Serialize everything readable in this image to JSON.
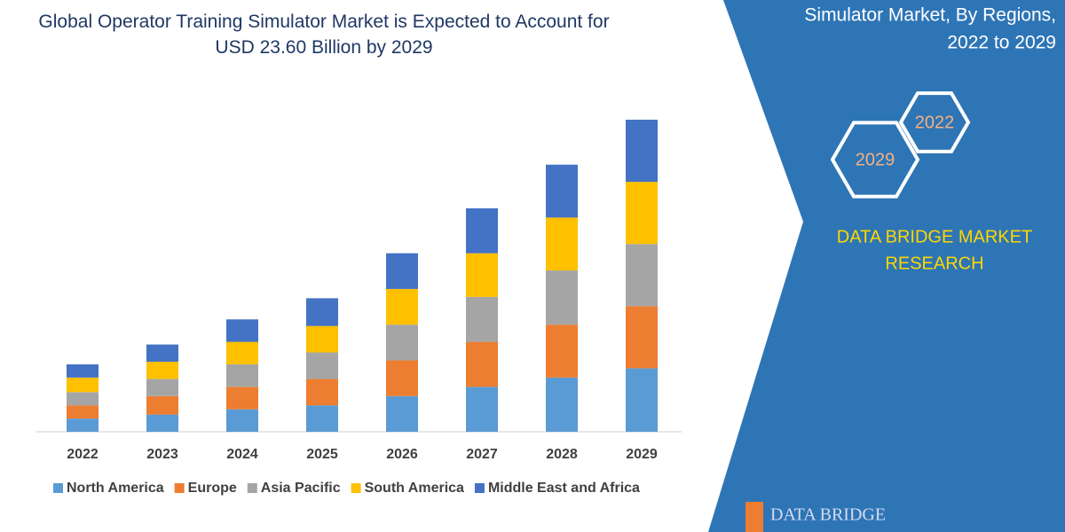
{
  "chart_data": {
    "type": "stacked_bar",
    "title": "Global Operator Training Simulator Market is Expected to Account for USD 23.60 Billion by 2029",
    "categories": [
      "2022",
      "2023",
      "2024",
      "2025",
      "2026",
      "2027",
      "2028",
      "2029"
    ],
    "series": [
      {
        "name": "North America",
        "color": "#5b9bd5",
        "values": [
          1.0,
          1.3,
          1.7,
          2.0,
          2.7,
          3.4,
          4.1,
          4.8
        ]
      },
      {
        "name": "Europe",
        "color": "#ed7d31",
        "values": [
          1.0,
          1.4,
          1.7,
          2.0,
          2.7,
          3.4,
          4.0,
          4.7
        ]
      },
      {
        "name": "Asia Pacific",
        "color": "#a5a5a5",
        "values": [
          1.0,
          1.3,
          1.7,
          2.0,
          2.7,
          3.4,
          4.1,
          4.7
        ]
      },
      {
        "name": "South America",
        "color": "#ffc000",
        "values": [
          1.1,
          1.3,
          1.7,
          2.0,
          2.7,
          3.3,
          4.0,
          4.7
        ]
      },
      {
        "name": "Middle East and Africa",
        "color": "#4472c4",
        "values": [
          1.0,
          1.3,
          1.7,
          2.1,
          2.7,
          3.4,
          4.0,
          4.7
        ]
      }
    ],
    "legend": "bottom"
  },
  "panel": {
    "subtitle_lines": [
      "Simulator Market, By Regions,",
      "2022 to 2029"
    ],
    "hexagons": [
      "2022",
      "2029"
    ],
    "brand_lines": [
      "DATA BRIDGE MARKET",
      "RESEARCH"
    ],
    "logo": "DATA BRIDGE"
  }
}
